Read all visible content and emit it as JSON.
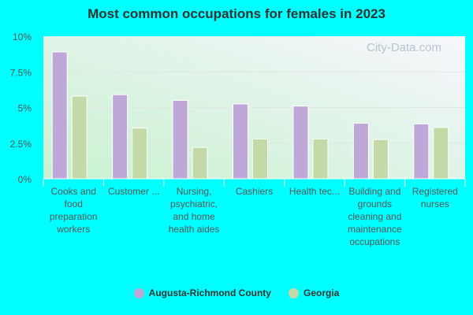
{
  "chart_data": {
    "type": "bar",
    "title": "Most common occupations for females in 2023",
    "categories": [
      "Cooks and food preparation workers",
      "Customer ...",
      "Nursing, psychiatric, and home health aides",
      "Cashiers",
      "Health tec...",
      "Building and grounds cleaning and maintenance occupations",
      "Registered nurses"
    ],
    "series": [
      {
        "name": "Augusta-Richmond County",
        "color": "#bea8d8",
        "values": [
          8.9,
          5.9,
          5.5,
          5.25,
          5.1,
          3.9,
          3.85
        ]
      },
      {
        "name": "Georgia",
        "color": "#c4d9a8",
        "values": [
          5.8,
          3.55,
          2.2,
          2.8,
          2.8,
          2.75,
          3.6
        ]
      }
    ],
    "yticks": [
      "0%",
      "2.5%",
      "5%",
      "7.5%",
      "10%"
    ],
    "ylim": [
      0,
      10
    ],
    "grid": true,
    "legend": "bottom",
    "watermark": "City-Data.com"
  }
}
